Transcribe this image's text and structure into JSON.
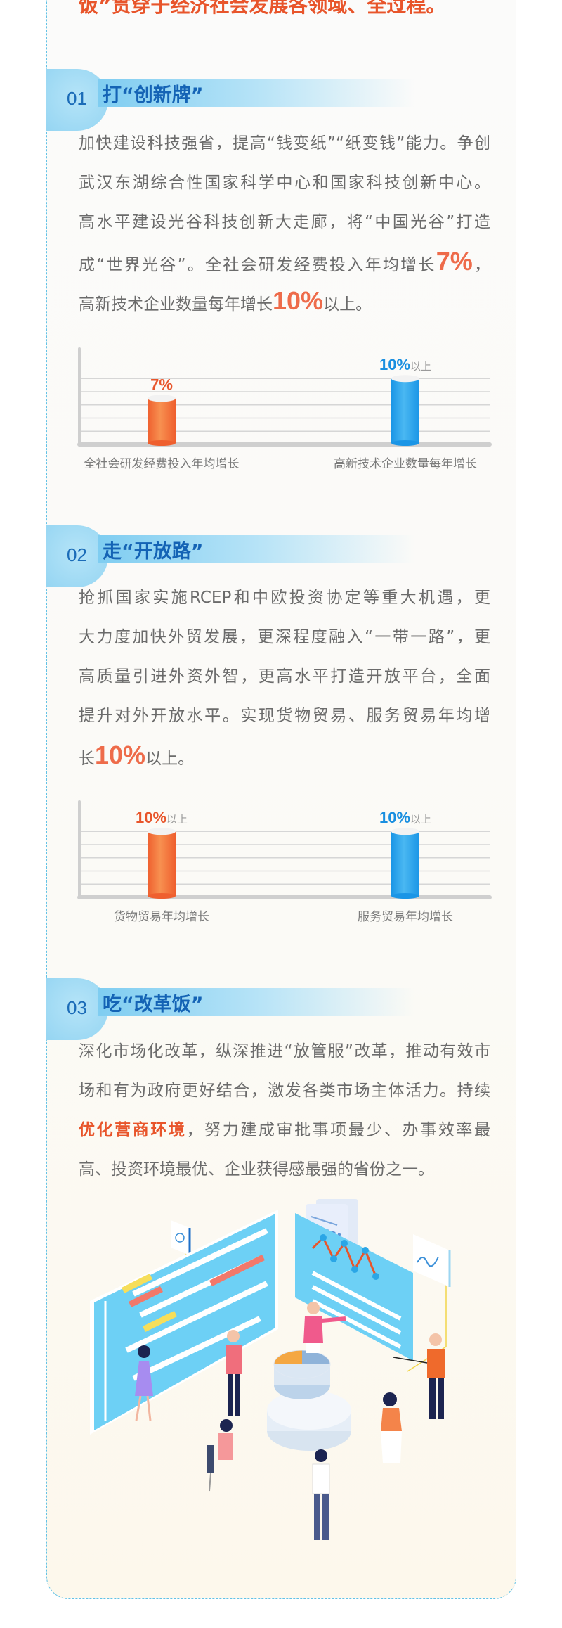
{
  "headline": "饭”贯穿于经济社会发展各领域、全过程。",
  "colors": {
    "accent_orange": "#e8552b",
    "accent_blue": "#1a8fe0",
    "title_blue": "#1463b5",
    "border": "#62c2e6",
    "text": "#6b6b6b"
  },
  "sections": [
    {
      "num": "01",
      "title": "打“创新牌”",
      "lines": [
        [
          "加快建设科技强省，提高“钱变纸”“纸变钱”能力。争创"
        ],
        [
          "武汉东湖综合性国家科学中心和国家科技创新中心。"
        ],
        [
          "高水平建设光谷科技创新大走廊，将“中国光谷”打造"
        ],
        [
          "成“世界光谷”。全社会研发经费投入年均增长",
          "7%",
          "，"
        ],
        [
          "高新技术企业数量每年增长",
          "10%",
          "以上。"
        ]
      ]
    },
    {
      "num": "02",
      "title": "走“开放路”",
      "lines": [
        [
          "抢抓国家实施RCEP和中欧投资协定等重大机遇，更"
        ],
        [
          "大力度加快外贸发展，更深程度融入“一带一路”，更"
        ],
        [
          "高质量引进外资外智，更高水平打造开放平台，全面"
        ],
        [
          "提升对外开放水平。实现货物贸易、服务贸易年均增"
        ],
        [
          "长",
          "10%",
          "以上。"
        ]
      ]
    },
    {
      "num": "03",
      "title": "吃“改革饭”",
      "lines": [
        [
          "深化市场化改革，纵深推进“放管服”改革，推动有效市"
        ],
        [
          "场和有为政府更好结合，激发各类市场主体活力。持续"
        ],
        [
          "优化营商环境",
          "，努力建成审批事项最少、办事效率最"
        ],
        [
          "高、投资环境最优、企业获得感最强的省份之一。"
        ]
      ]
    }
  ],
  "chart_data": [
    {
      "type": "bar",
      "categories": [
        "全社会研发经费投入年均增长",
        "高新技术企业数量每年增长"
      ],
      "values": [
        7,
        10
      ],
      "value_labels": [
        {
          "value": "7%",
          "suffix": ""
        },
        {
          "value": "10%",
          "suffix": "以上"
        }
      ],
      "bar_colors": [
        "#ef5f2e",
        "#1a95e6"
      ],
      "label_colors": [
        "#e8552b",
        "#1a8fe0"
      ],
      "ylim": [
        0,
        14.5
      ],
      "grid": true,
      "grid_values": [
        2,
        4,
        6,
        8,
        10
      ]
    },
    {
      "type": "bar",
      "categories": [
        "货物贸易年均增长",
        "服务贸易年均增长"
      ],
      "values": [
        10,
        10
      ],
      "value_labels": [
        {
          "value": "10%",
          "suffix": "以上"
        },
        {
          "value": "10%",
          "suffix": "以上"
        }
      ],
      "bar_colors": [
        "#ef5f2e",
        "#1a95e6"
      ],
      "label_colors": [
        "#e8552b",
        "#1a8fe0"
      ],
      "ylim": [
        0,
        14.5
      ],
      "grid": true,
      "grid_values": [
        2,
        4,
        6,
        8,
        10
      ]
    }
  ]
}
